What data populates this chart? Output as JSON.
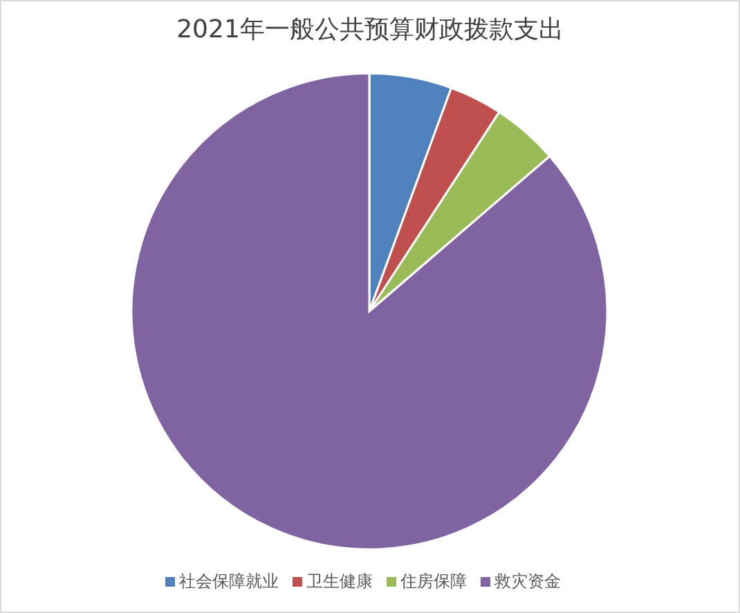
{
  "chart_data": {
    "type": "pie",
    "title": "2021年一般公共预算财政拨款支出",
    "categories": [
      "社会保障就业",
      "卫生健康",
      "住房保障",
      "救灾资金"
    ],
    "values": [
      5.6,
      3.6,
      4.5,
      86.3
    ],
    "colors": [
      "#4f81bd",
      "#c0504d",
      "#9bbb59",
      "#8064a2"
    ],
    "legend": "bottom"
  }
}
